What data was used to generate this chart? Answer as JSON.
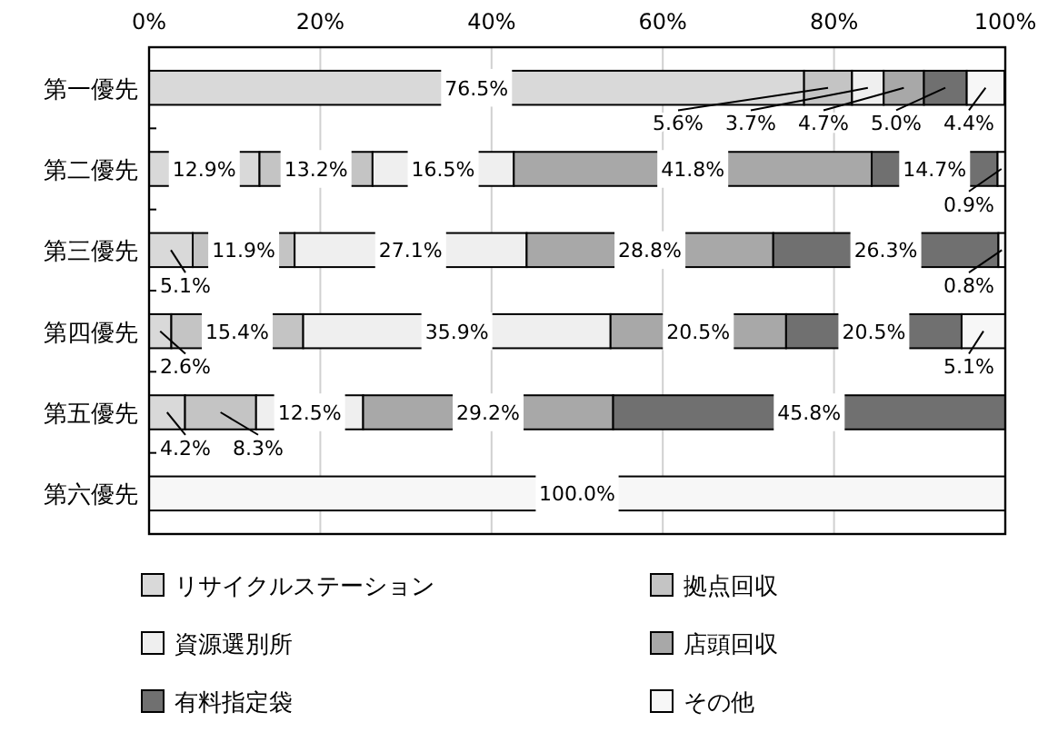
{
  "chart_data": {
    "type": "bar",
    "orientation": "horizontal",
    "stacked": true,
    "categories": [
      "第一優先",
      "第二優先",
      "第三優先",
      "第四優先",
      "第五優先",
      "第六優先"
    ],
    "xlim": [
      0,
      100
    ],
    "xticks": [
      {
        "value": 0,
        "label": "0%"
      },
      {
        "value": 20,
        "label": "20%"
      },
      {
        "value": 40,
        "label": "40%"
      },
      {
        "value": 60,
        "label": "60%"
      },
      {
        "value": 80,
        "label": "80%"
      },
      {
        "value": 100,
        "label": "100%"
      }
    ],
    "grid": "x",
    "legend": "bottom",
    "series": [
      {
        "name": "リサイクルステーション",
        "color": "#d9d9d9",
        "values": [
          76.5,
          12.9,
          5.1,
          2.6,
          4.2,
          null
        ],
        "value_labels": [
          "76.5%",
          "12.9%",
          "5.1%",
          "2.6%",
          "4.2%",
          null
        ]
      },
      {
        "name": "拠点回収",
        "color": "#c4c4c4",
        "values": [
          5.6,
          13.2,
          11.9,
          15.4,
          8.3,
          null
        ],
        "value_labels": [
          "5.6%",
          "13.2%",
          "11.9%",
          "15.4%",
          "8.3%",
          null
        ]
      },
      {
        "name": "資源選別所",
        "color": "#efefef",
        "values": [
          3.7,
          16.5,
          27.1,
          35.9,
          12.5,
          null
        ],
        "value_labels": [
          "3.7%",
          "16.5%",
          "27.1%",
          "35.9%",
          "12.5%",
          null
        ]
      },
      {
        "name": "店頭回収",
        "color": "#a8a8a8",
        "values": [
          4.7,
          41.8,
          28.8,
          20.5,
          29.2,
          null
        ],
        "value_labels": [
          "4.7%",
          "41.8%",
          "28.8%",
          "20.5%",
          "29.2%",
          null
        ]
      },
      {
        "name": "有料指定袋",
        "color": "#707070",
        "values": [
          5.0,
          14.7,
          26.3,
          20.5,
          45.8,
          null
        ],
        "value_labels": [
          "5.0%",
          "14.7%",
          "26.3%",
          "20.5%",
          "45.8%",
          null
        ]
      },
      {
        "name": "その他",
        "color": "#f7f7f7",
        "values": [
          4.4,
          0.9,
          0.8,
          5.1,
          null,
          100
        ],
        "value_labels": [
          "4.4%",
          "0.9%",
          "0.8%",
          "5.1%",
          null,
          "100.0%"
        ]
      }
    ]
  }
}
